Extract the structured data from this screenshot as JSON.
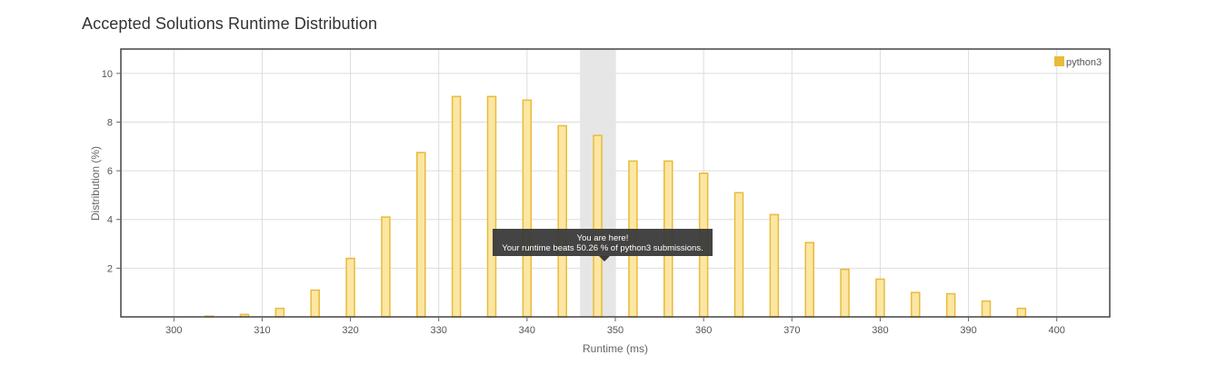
{
  "page": {
    "title": "Accepted Solutions Runtime Distribution"
  },
  "chart_data": {
    "type": "bar",
    "title": "Accepted Solutions Runtime Distribution",
    "xlabel": "Runtime (ms)",
    "ylabel": "Distribution (%)",
    "xlim": [
      294,
      406
    ],
    "ylim": [
      0,
      11
    ],
    "x_ticks": [
      300,
      310,
      320,
      330,
      340,
      350,
      360,
      370,
      380,
      390,
      400
    ],
    "y_ticks": [
      2,
      4,
      6,
      8,
      10
    ],
    "grid": true,
    "legend": "top-right",
    "colors": {
      "fill": "#fbe6a3",
      "stroke": "#e8bb3a",
      "highlight": "#e6e6e6",
      "legend_swatch": "#e8bb3a"
    },
    "series": [
      {
        "name": "python3",
        "x": [
          304,
          308,
          312,
          316,
          320,
          324,
          328,
          332,
          336,
          340,
          344,
          348,
          352,
          356,
          360,
          364,
          368,
          372,
          376,
          380,
          384,
          388,
          392,
          396
        ],
        "values": [
          0.03,
          0.1,
          0.35,
          1.1,
          2.4,
          4.1,
          6.75,
          9.05,
          9.05,
          8.9,
          7.85,
          7.45,
          6.4,
          6.4,
          5.9,
          5.1,
          4.2,
          3.05,
          1.95,
          1.55,
          1.0,
          0.95,
          0.65,
          0.35
        ]
      }
    ],
    "highlight": {
      "x_range": [
        346,
        350
      ]
    },
    "tooltip": {
      "line1": "You are here!",
      "line2": "Your runtime beats 50.26 % of python3 submissions."
    }
  }
}
